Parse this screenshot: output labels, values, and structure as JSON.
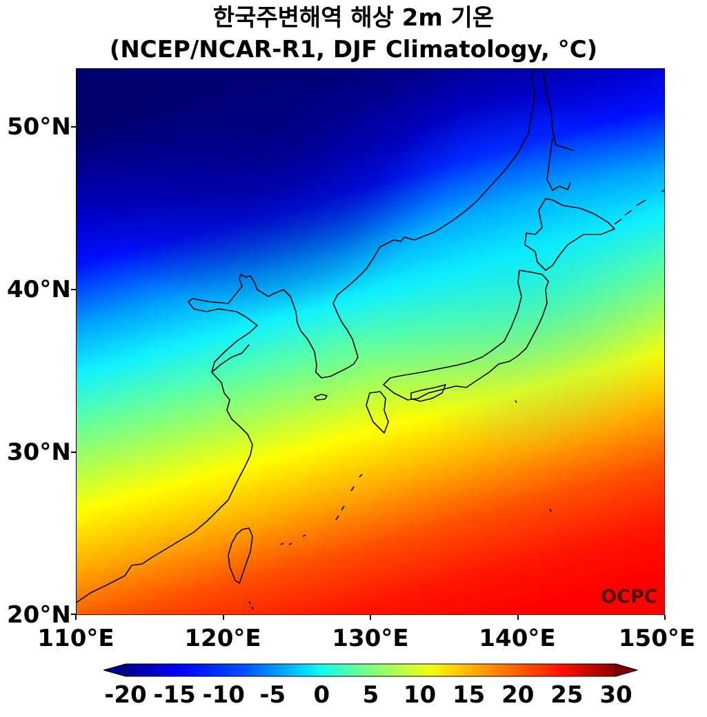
{
  "title": {
    "line1": "한국주변해역 해상 2m 기온",
    "line2": "(NCEP/NCAR-R1, DJF Climatology, °C)"
  },
  "map": {
    "lon_range": [
      110,
      150
    ],
    "lat_range": [
      20,
      53.5
    ],
    "lat_labels": [
      "50°N",
      "40°N",
      "30°N",
      "20°N"
    ],
    "lon_labels": [
      "110°E",
      "120°E",
      "130°E",
      "140°E",
      "150°E"
    ],
    "watermark": "OCPC",
    "colormap": "jet",
    "variable": "Air temperature 2m",
    "units": "°C"
  },
  "colorbar": {
    "ticks": [
      "-20",
      "-15",
      "-10",
      "-5",
      "0",
      "5",
      "10",
      "15",
      "20",
      "25",
      "30"
    ],
    "range": [
      -20,
      30
    ],
    "extend": "both"
  }
}
